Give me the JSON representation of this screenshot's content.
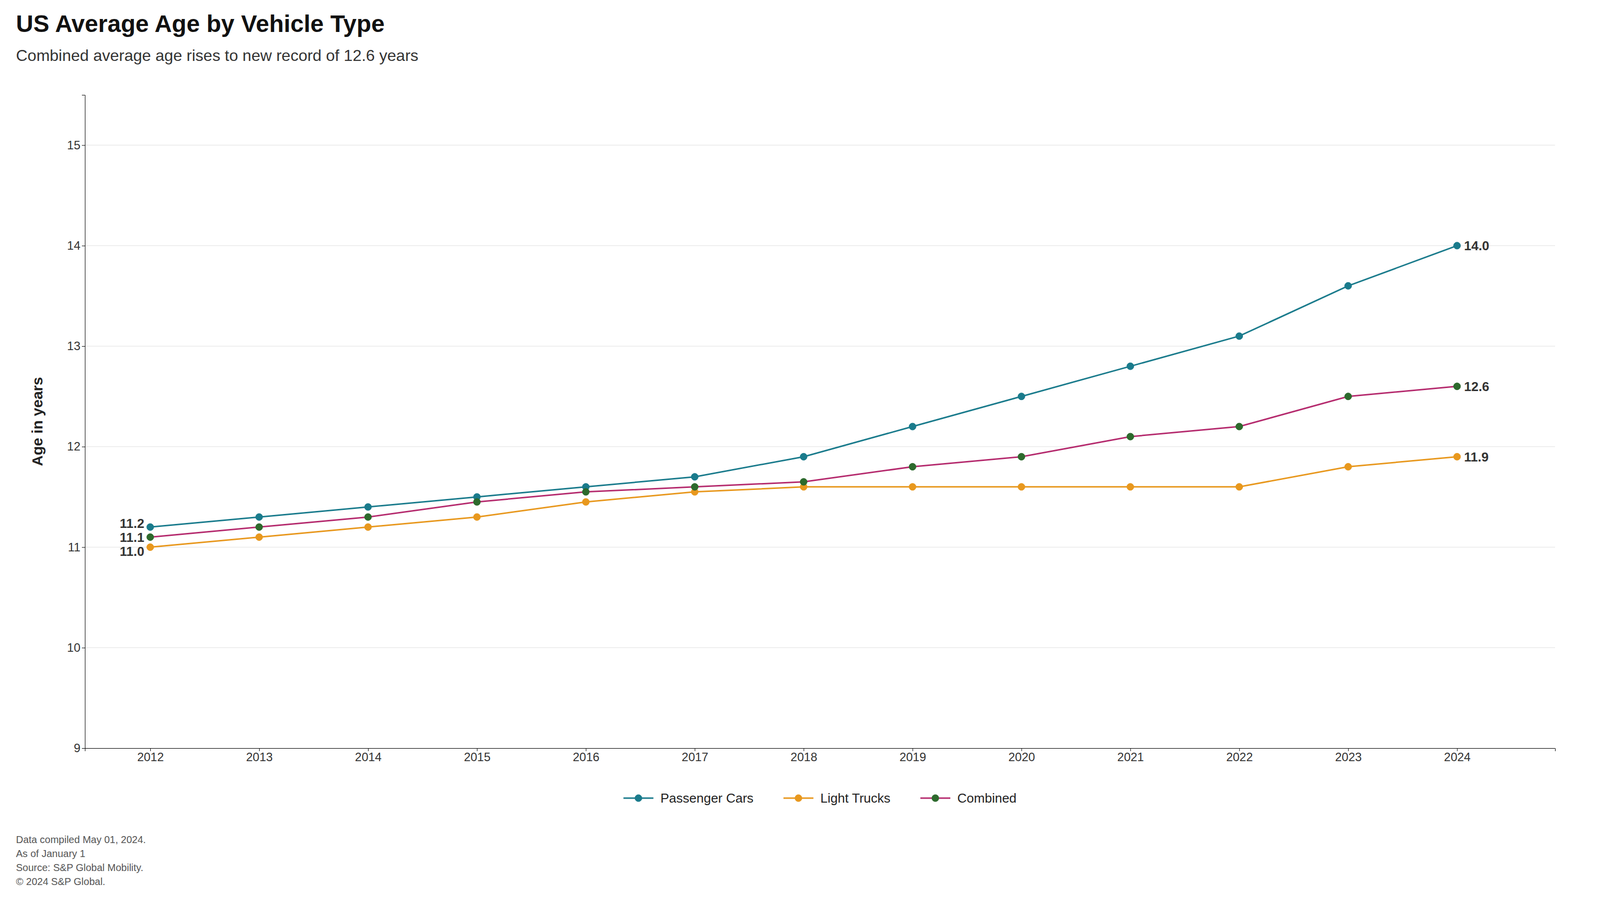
{
  "chart_data": {
    "type": "line",
    "title": "US Average Age by Vehicle Type",
    "subtitle": "Combined average age rises to new record of 12.6 years",
    "y_label": "Age in years",
    "x": [
      2012,
      2013,
      2014,
      2015,
      2016,
      2017,
      2018,
      2019,
      2020,
      2021,
      2022,
      2023,
      2024
    ],
    "xlim": [
      2011.4,
      2024.9
    ],
    "xticks": [
      2012,
      2013,
      2014,
      2015,
      2016,
      2017,
      2018,
      2019,
      2020,
      2021,
      2022,
      2023,
      2024
    ],
    "ylim": [
      9,
      15.5
    ],
    "yticks": [
      9,
      10,
      11,
      12,
      13,
      14,
      15
    ],
    "grid": "y",
    "legend": "bottom",
    "series": [
      {
        "name": "Passenger Cars",
        "color": "#1a7b8c",
        "marker": "circle",
        "values": [
          11.2,
          11.3,
          11.4,
          11.5,
          11.6,
          11.7,
          11.9,
          12.2,
          12.5,
          12.8,
          13.1,
          13.6,
          14.0
        ]
      },
      {
        "name": "Light Trucks",
        "color": "#e8981e",
        "marker": "circle",
        "values": [
          11.0,
          11.1,
          11.2,
          11.3,
          11.45,
          11.55,
          11.6,
          11.6,
          11.6,
          11.6,
          11.6,
          11.8,
          11.9
        ]
      },
      {
        "name": "Combined",
        "color": "#b52b6e",
        "marker": "circle",
        "colors": [
          "#2d6a2d",
          "#2d6a2d",
          "#2d6a2d",
          "#2d6a2d",
          "#2d6a2d",
          "#2d6a2d",
          "#2d6a2d",
          "#2d6a2d",
          "#2d6a2d",
          "#2d6a2d",
          "#2d6a2d",
          "#2d6a2d",
          "#2d6a2d"
        ],
        "values": [
          11.1,
          11.2,
          11.3,
          11.45,
          11.55,
          11.6,
          11.65,
          11.8,
          11.9,
          12.1,
          12.2,
          12.5,
          12.6
        ]
      }
    ],
    "annotations": [
      {
        "text": "11.2",
        "x": 2012,
        "y": 11.2
      },
      {
        "text": "11.1",
        "x": 2012,
        "y": 11.1
      },
      {
        "text": "11.0",
        "x": 2012,
        "y": 11.0
      },
      {
        "text": "14.0",
        "x": 2024,
        "y": 14.0
      },
      {
        "text": "12.6",
        "x": 2024,
        "y": 12.6
      },
      {
        "text": "11.9",
        "x": 2024,
        "y": 11.9
      }
    ],
    "footnotes": [
      "Data compiled May 01, 2024.",
      "As of January 1",
      "Source: S&P Global Mobility.",
      "© 2024 S&P Global."
    ]
  }
}
